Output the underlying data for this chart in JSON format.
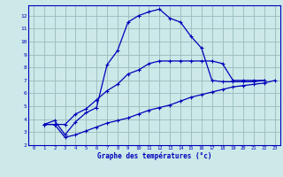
{
  "bg_color": "#cce8e8",
  "line_color": "#0000bb",
  "grid_color": "#99bbbb",
  "xlabel": "Graphe des températures (°c)",
  "xlim": [
    -0.5,
    23.5
  ],
  "ylim": [
    2,
    12.8
  ],
  "yticks": [
    2,
    3,
    4,
    5,
    6,
    7,
    8,
    9,
    10,
    11,
    12
  ],
  "xticks": [
    0,
    1,
    2,
    3,
    4,
    5,
    6,
    7,
    8,
    9,
    10,
    11,
    12,
    13,
    14,
    15,
    16,
    17,
    18,
    19,
    20,
    21,
    22,
    23
  ],
  "curve1_x": [
    1,
    2,
    3,
    4,
    5,
    6,
    7,
    8,
    9,
    10,
    11,
    12,
    13,
    14,
    15,
    16,
    17,
    18,
    19,
    20,
    21,
    22
  ],
  "curve1_y": [
    3.6,
    3.9,
    2.8,
    3.8,
    4.5,
    4.9,
    8.2,
    9.3,
    11.5,
    12.0,
    12.3,
    12.5,
    11.8,
    11.5,
    10.4,
    9.5,
    7.0,
    6.9,
    6.9,
    6.9,
    6.9,
    7.0
  ],
  "curve2_x": [
    1,
    2,
    3,
    4,
    5,
    6,
    7,
    8,
    9,
    10,
    11,
    12,
    13,
    14,
    15,
    16,
    17,
    18,
    19,
    20,
    21,
    22
  ],
  "curve2_y": [
    3.6,
    3.6,
    3.6,
    4.4,
    4.8,
    5.5,
    6.2,
    6.7,
    7.5,
    7.8,
    8.3,
    8.5,
    8.5,
    8.5,
    8.5,
    8.5,
    8.5,
    8.3,
    7.0,
    7.0,
    7.0,
    7.0
  ],
  "curve3_x": [
    1,
    2,
    3,
    4,
    5,
    6,
    7,
    8,
    9,
    10,
    11,
    12,
    13,
    14,
    15,
    16,
    17,
    18,
    19,
    20,
    21,
    22,
    23
  ],
  "curve3_y": [
    3.6,
    3.6,
    2.6,
    2.8,
    3.1,
    3.4,
    3.7,
    3.9,
    4.1,
    4.4,
    4.7,
    4.9,
    5.1,
    5.4,
    5.7,
    5.9,
    6.1,
    6.3,
    6.5,
    6.6,
    6.7,
    6.8,
    7.0
  ]
}
